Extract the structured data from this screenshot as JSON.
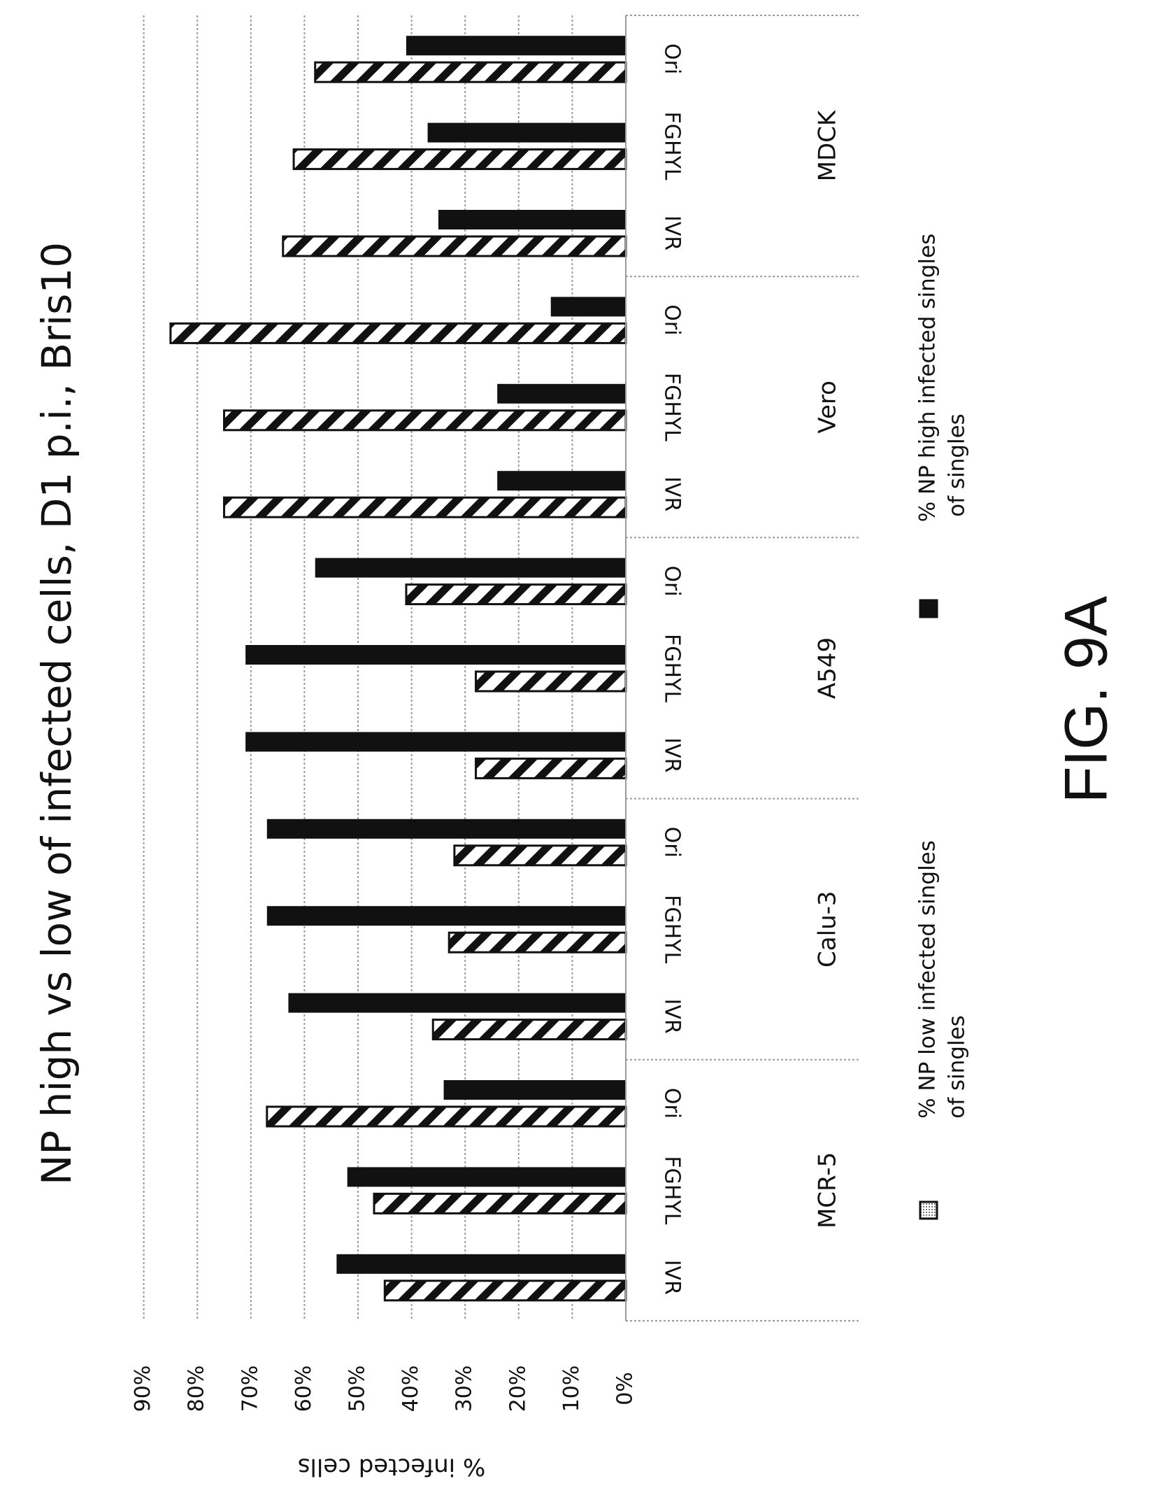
{
  "figure_label": "FIG. 9A",
  "colors": {
    "ink": "#111111",
    "grid": "#9a9a9a",
    "background": "#ffffff"
  },
  "chart_data": {
    "type": "bar",
    "orientation": "vertical bars, figure rotated 90° clockwise on the page",
    "title": "NP high vs low of infected cells, D1 p.i., Bris10",
    "xlabel": "",
    "ylabel": "% infected cells",
    "ylim": [
      0,
      90
    ],
    "y_ticks": [
      "0%",
      "10%",
      "20%",
      "30%",
      "40%",
      "50%",
      "60%",
      "70%",
      "80%",
      "90%"
    ],
    "grid": true,
    "legend_position": "bottom",
    "groups": [
      {
        "name": "MDCK",
        "categories": [
          "Ori",
          "FGHYL",
          "IVR"
        ]
      },
      {
        "name": "Vero",
        "categories": [
          "Ori",
          "FGHYL",
          "IVR"
        ]
      },
      {
        "name": "A549",
        "categories": [
          "Ori",
          "FGHYL",
          "IVR"
        ]
      },
      {
        "name": "Calu-3",
        "categories": [
          "Ori",
          "FGHYL",
          "IVR"
        ]
      },
      {
        "name": "MCR-5",
        "categories": [
          "Ori",
          "FGHYL",
          "IVR"
        ]
      }
    ],
    "series": [
      {
        "name": "% NP low infected singles of singles",
        "pattern": "hatched",
        "values": [
          58,
          62,
          64,
          85,
          75,
          75,
          41,
          28,
          28,
          32,
          33,
          36,
          67,
          47,
          45
        ]
      },
      {
        "name": "% NP high infected singles of singles",
        "pattern": "solid",
        "values": [
          41,
          37,
          35,
          14,
          24,
          24,
          58,
          71,
          71,
          67,
          67,
          63,
          34,
          52,
          54
        ]
      }
    ]
  }
}
